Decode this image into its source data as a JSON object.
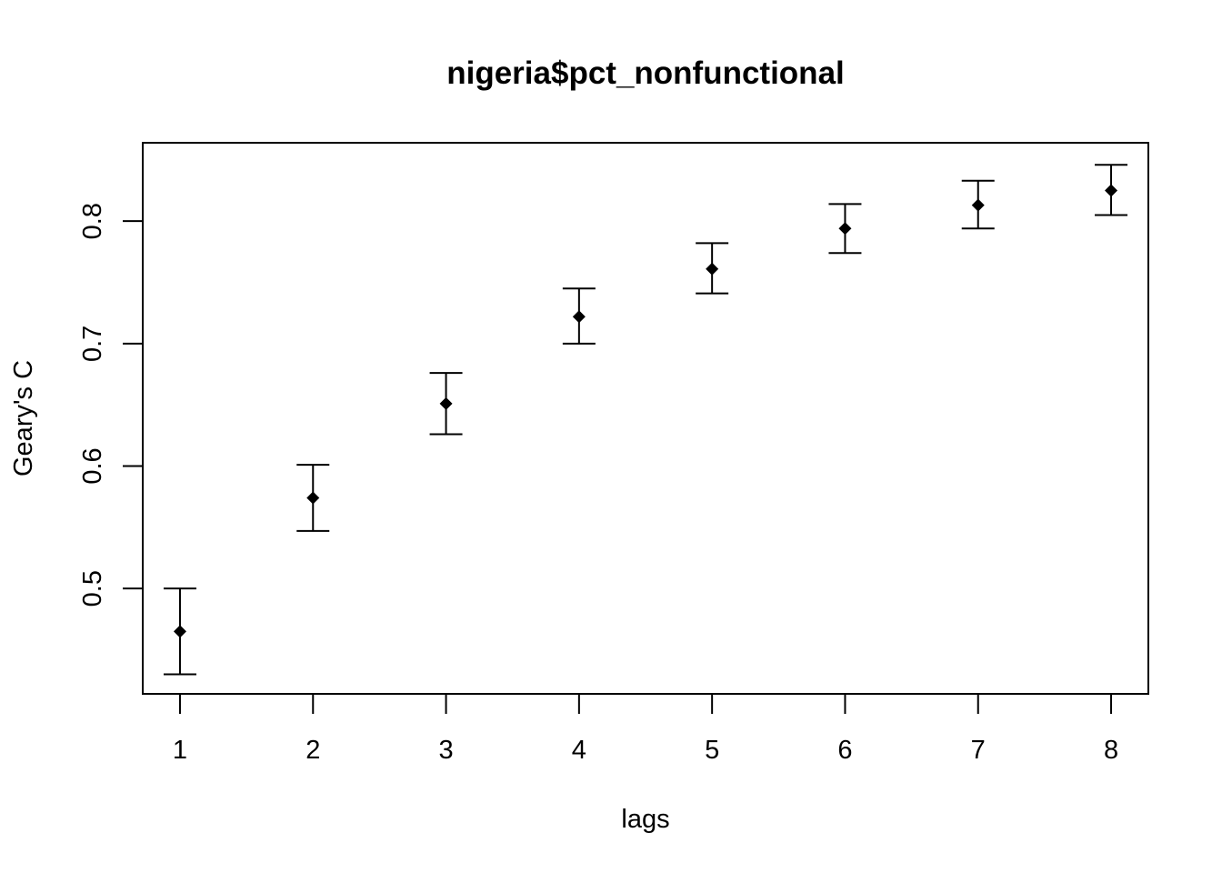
{
  "chart_data": {
    "type": "scatter",
    "title": "nigeria$pct_nonfunctional",
    "xlabel": "lags",
    "ylabel": "Geary's C",
    "x": [
      1,
      2,
      3,
      4,
      5,
      6,
      7,
      8
    ],
    "x_ticks": [
      "1",
      "2",
      "3",
      "4",
      "5",
      "6",
      "7",
      "8"
    ],
    "y_ticks": [
      "0.5",
      "0.6",
      "0.7",
      "0.8"
    ],
    "xlim": [
      0.72,
      8.28
    ],
    "ylim": [
      0.414,
      0.864
    ],
    "series": [
      {
        "values": [
          0.465,
          0.574,
          0.651,
          0.722,
          0.761,
          0.794,
          0.813,
          0.825
        ],
        "lower": [
          0.43,
          0.547,
          0.626,
          0.7,
          0.741,
          0.774,
          0.794,
          0.805
        ],
        "upper": [
          0.5,
          0.601,
          0.676,
          0.745,
          0.782,
          0.814,
          0.833,
          0.846
        ]
      }
    ],
    "marker": "diamond",
    "error_bars": true,
    "grid": false,
    "legend": "none",
    "color": "#000000"
  }
}
